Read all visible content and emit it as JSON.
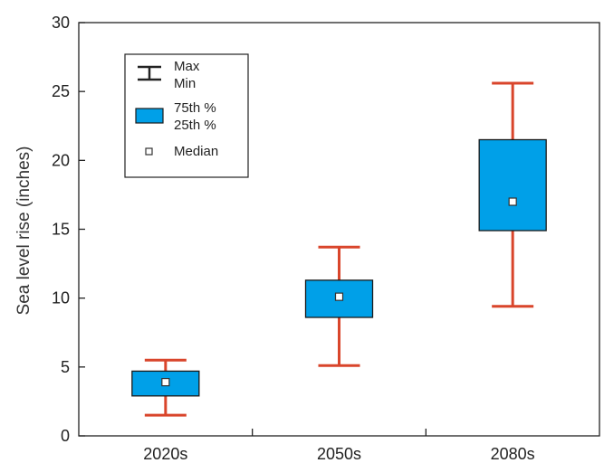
{
  "chart_data": {
    "type": "box",
    "title": "",
    "xlabel": "",
    "ylabel": "Sea level rise (inches)",
    "ylim": [
      0,
      30
    ],
    "yticks": [
      "0",
      "5",
      "10",
      "15",
      "20",
      "25",
      "30"
    ],
    "categories": [
      "2020s",
      "2050s",
      "2080s"
    ],
    "boxes": [
      {
        "category": "2020s",
        "min": 1.5,
        "q1": 2.9,
        "median": 3.9,
        "q3": 4.7,
        "max": 5.5
      },
      {
        "category": "2050s",
        "min": 5.1,
        "q1": 8.6,
        "median": 10.1,
        "q3": 11.3,
        "max": 13.7
      },
      {
        "category": "2080s",
        "min": 9.4,
        "q1": 14.9,
        "median": 17.0,
        "q3": 21.5,
        "max": 25.6
      }
    ],
    "legend": {
      "placement": "top-left",
      "items": [
        {
          "symbol": "whisker",
          "labels": [
            "Max",
            "Min"
          ]
        },
        {
          "symbol": "box",
          "labels": [
            "75th %",
            "25th %"
          ]
        },
        {
          "symbol": "median",
          "labels": [
            "Median"
          ]
        }
      ]
    },
    "grid": false
  },
  "colors": {
    "box_fill": "#00a0e8",
    "whisker": "#d9452b",
    "axis": "#222222",
    "median_fill": "#ffffff"
  }
}
